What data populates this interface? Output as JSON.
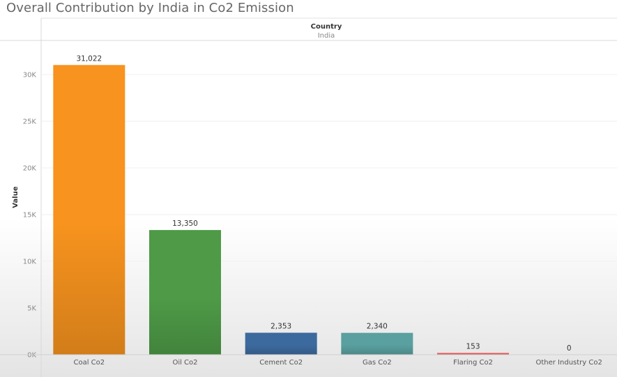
{
  "title": "Overall Contribution by India in Co2 Emission",
  "header": {
    "field": "Country",
    "value": "India"
  },
  "chart_data": {
    "type": "bar",
    "title": "Overall Contribution by India in Co2 Emission",
    "xlabel": "",
    "ylabel": "Value",
    "ylim": [
      0,
      33000
    ],
    "yticks": [
      {
        "value": 0,
        "label": "0K"
      },
      {
        "value": 5000,
        "label": "5K"
      },
      {
        "value": 10000,
        "label": "10K"
      },
      {
        "value": 15000,
        "label": "15K"
      },
      {
        "value": 20000,
        "label": "20K"
      },
      {
        "value": 25000,
        "label": "25K"
      },
      {
        "value": 30000,
        "label": "30K"
      }
    ],
    "grid": true,
    "legend": "none",
    "categories": [
      "Coal Co2",
      "Oil Co2",
      "Cement Co2",
      "Gas Co2",
      "Flaring Co2",
      "Other Industry Co2"
    ],
    "values": [
      31022,
      13350,
      2353,
      2340,
      153,
      0
    ],
    "value_labels": [
      "31,022",
      "13,350",
      "2,353",
      "2,340",
      "153",
      "0"
    ],
    "colors": [
      "#f7931e",
      "#4e9a47",
      "#3d6a9e",
      "#5aa0a0",
      "#e15759",
      "#bab0ac"
    ]
  }
}
